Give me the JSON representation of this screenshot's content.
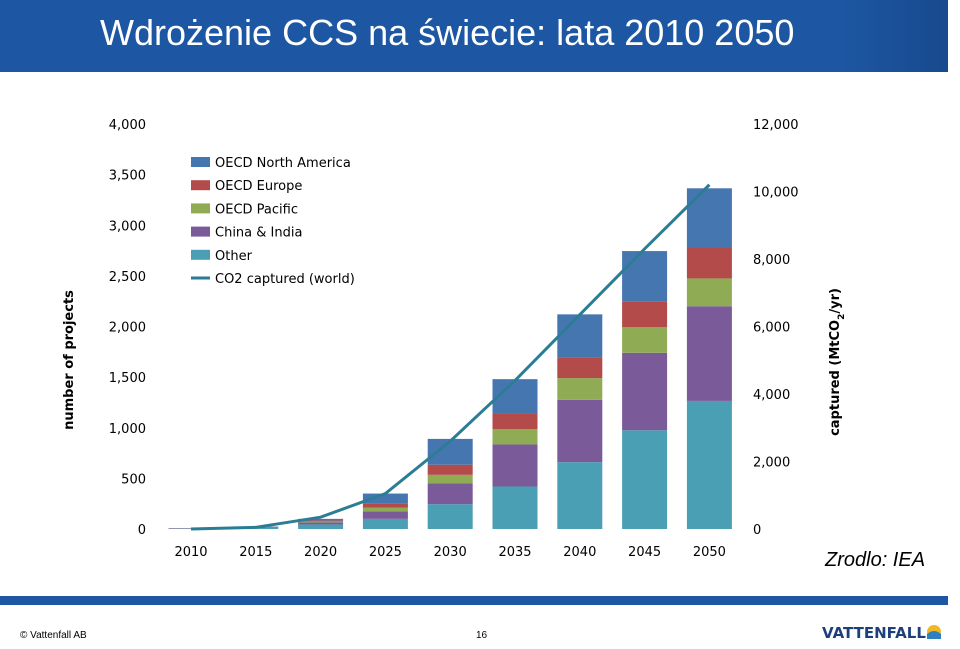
{
  "slide": {
    "title": "Wdrożenie CCS na świecie: lata 2010 2050",
    "source": "Zrodlo: IEA",
    "footer_left": "© Vattenfall AB",
    "page_number": "16",
    "logo_text": "VATTENFALL",
    "colors": {
      "title_bar": "#1d57a3"
    }
  },
  "chart_data": {
    "type": "bar",
    "stacked": true,
    "categories": [
      "2010",
      "2015",
      "2020",
      "2025",
      "2030",
      "2035",
      "2040",
      "2045",
      "2050"
    ],
    "series": [
      {
        "name": "Other",
        "color": "#4a9fb5",
        "values": [
          3,
          10,
          45,
          100,
          245,
          420,
          660,
          975,
          1265
        ]
      },
      {
        "name": "China & India",
        "color": "#7b5a9a",
        "values": [
          2,
          5,
          20,
          75,
          205,
          415,
          615,
          765,
          935
        ]
      },
      {
        "name": "OECD Pacific",
        "color": "#8fac55",
        "values": [
          1,
          3,
          10,
          35,
          85,
          150,
          215,
          255,
          275
        ]
      },
      {
        "name": "OECD Europe",
        "color": "#b24b49",
        "values": [
          2,
          3,
          10,
          45,
          100,
          160,
          200,
          250,
          305
        ]
      },
      {
        "name": "OECD North America",
        "color": "#4676b0",
        "values": [
          2,
          4,
          15,
          95,
          255,
          335,
          430,
          500,
          585
        ]
      }
    ],
    "line": {
      "name": "CO2 captured (world)",
      "color": "#2b7d96",
      "values": [
        0,
        50,
        350,
        1050,
        2600,
        4400,
        6350,
        8300,
        10200
      ]
    },
    "ylabel": "number of projects",
    "y2label": "captured (MtCO",
    "y2label_sub": "2",
    "y2label_end": "/yr)",
    "ylim": [
      0,
      4000
    ],
    "y2lim": [
      0,
      12000
    ],
    "yticks": [
      "0",
      "500",
      "1,000",
      "1,500",
      "2,000",
      "2,500",
      "3,000",
      "3,500",
      "4,000"
    ],
    "y2ticks": [
      "0",
      "2,000",
      "4,000",
      "6,000",
      "8,000",
      "10,000",
      "12,000"
    ],
    "legend_position": "top-left",
    "legend_order": [
      "OECD North America",
      "OECD Europe",
      "OECD Pacific",
      "China & India",
      "Other",
      "CO2 captured (world)"
    ]
  }
}
